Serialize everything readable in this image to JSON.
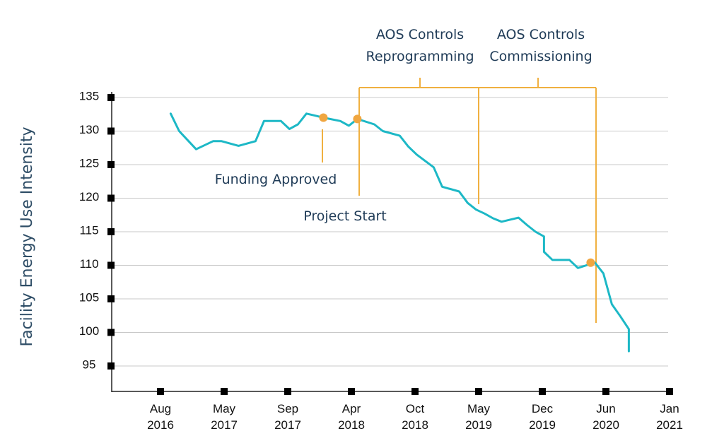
{
  "chart_data": {
    "type": "line",
    "title": "",
    "xlabel": "",
    "ylabel": "Facility Energy Use Intensity",
    "ylim": [
      90,
      135
    ],
    "y_ticks": [
      "135",
      "130",
      "125",
      "120",
      "115",
      "110",
      "105",
      "100",
      "95"
    ],
    "x_ticks": [
      {
        "month": "Aug",
        "year": "2016",
        "t": 2016.58
      },
      {
        "month": "May",
        "year": "2017",
        "t": 2017.33
      },
      {
        "month": "Sep",
        "year": "2017",
        "t": 2018.08
      },
      {
        "month": "Apr",
        "year": "2018",
        "t": 2018.83
      },
      {
        "month": "Oct",
        "year": "2018",
        "t": 2019.58
      },
      {
        "month": "May",
        "year": "2019",
        "t": 2020.33
      },
      {
        "month": "Dec",
        "year": "2019",
        "t": 2021.08
      },
      {
        "month": "Jun",
        "year": "2020",
        "t": 2021.83
      },
      {
        "month": "Jan",
        "year": "2021",
        "t": 2022.58
      }
    ],
    "series": [
      {
        "name": "Facility Energy Use Intensity",
        "color": "#1db8c6",
        "points": [
          [
            16.7,
            132.6
          ],
          [
            16.8,
            130.0
          ],
          [
            17.0,
            127.3
          ],
          [
            17.2,
            128.5
          ],
          [
            17.3,
            128.5
          ],
          [
            17.5,
            127.8
          ],
          [
            17.7,
            128.5
          ],
          [
            17.8,
            131.5
          ],
          [
            18.0,
            131.5
          ],
          [
            18.1,
            130.3
          ],
          [
            18.2,
            131.0
          ],
          [
            18.3,
            132.6
          ],
          [
            18.4,
            132.3
          ],
          [
            18.5,
            132.0
          ],
          [
            18.7,
            131.5
          ],
          [
            18.8,
            130.8
          ],
          [
            18.9,
            131.8
          ],
          [
            19.1,
            131.0
          ],
          [
            19.2,
            130.0
          ],
          [
            19.4,
            129.3
          ],
          [
            19.5,
            127.7
          ],
          [
            19.6,
            126.5
          ],
          [
            19.8,
            124.6
          ],
          [
            19.9,
            121.7
          ],
          [
            20.1,
            121.0
          ],
          [
            20.2,
            119.3
          ],
          [
            20.3,
            118.3
          ],
          [
            20.4,
            117.7
          ],
          [
            20.5,
            117.0
          ],
          [
            20.6,
            116.5
          ],
          [
            20.8,
            117.1
          ],
          [
            20.9,
            116.0
          ],
          [
            21.0,
            115.0
          ],
          [
            21.1,
            114.3
          ],
          [
            21.1,
            112.0
          ],
          [
            21.2,
            110.8
          ],
          [
            21.3,
            110.8
          ],
          [
            21.4,
            110.8
          ],
          [
            21.5,
            109.6
          ],
          [
            21.6,
            110.0
          ],
          [
            21.7,
            110.4
          ],
          [
            21.8,
            108.8
          ],
          [
            21.9,
            104.2
          ],
          [
            22.0,
            102.4
          ],
          [
            22.1,
            100.5
          ],
          [
            22.1,
            97.2
          ]
        ]
      }
    ],
    "milestones": [
      {
        "t": 18.5,
        "value": 132.0
      },
      {
        "t": 18.9,
        "value": 131.8
      },
      {
        "t": 21.65,
        "value": 110.4
      }
    ],
    "annotations": {
      "funding": "Funding Approved",
      "project_start": "Project Start",
      "reprogramming_line1": "AOS Controls",
      "reprogramming_line2": "Reprogramming",
      "commissioning_line1": "AOS Controls",
      "commissioning_line2": "Commissioning"
    },
    "colors": {
      "line": "#1db8c6",
      "marker": "#f0a640",
      "bracket": "#f0b040",
      "grid": "#c8c8c8",
      "axis": "#222222",
      "text": "#1f3b57"
    }
  }
}
